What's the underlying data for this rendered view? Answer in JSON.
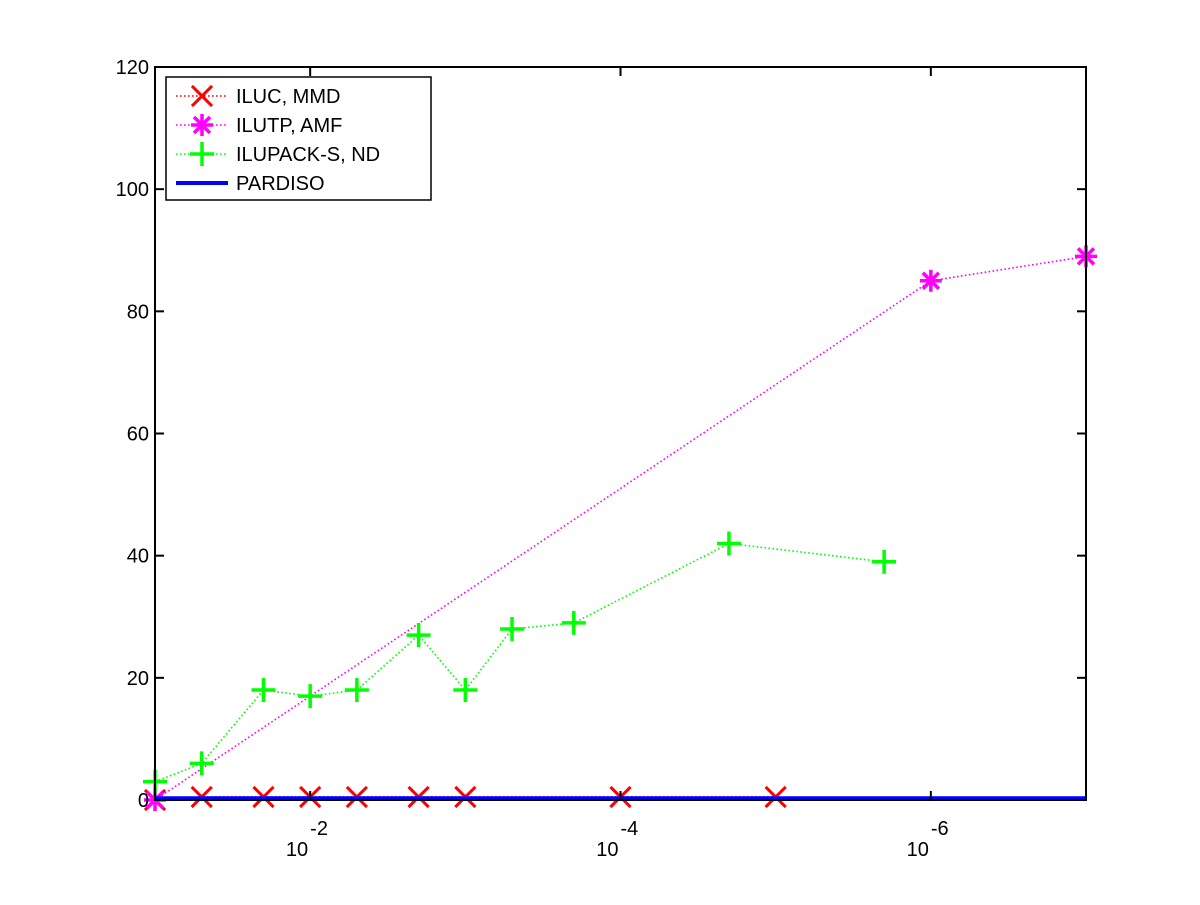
{
  "chart_data": {
    "type": "line",
    "title": "",
    "xlabel": "",
    "ylabel": "",
    "x_scale": "log",
    "x_reversed": true,
    "xlim": [
      0.1,
      1e-07
    ],
    "ylim": [
      0,
      120
    ],
    "y_ticks": [
      0,
      20,
      40,
      60,
      80,
      100,
      120
    ],
    "x_ticks": [
      {
        "value": 0.01,
        "base": "10",
        "exponent": "-2"
      },
      {
        "value": 0.0001,
        "base": "10",
        "exponent": "-4"
      },
      {
        "value": 1e-06,
        "base": "10",
        "exponent": "-6"
      }
    ],
    "grid": false,
    "legend_position": "top-left",
    "series": [
      {
        "name": "ILUC, MMD",
        "color": "#ff0000",
        "marker": "x",
        "line_style": "dotted",
        "points": [
          [
            0.1,
            0
          ],
          [
            0.05,
            0.5
          ],
          [
            0.02,
            0.5
          ],
          [
            0.01,
            0.5
          ],
          [
            0.005,
            0.5
          ],
          [
            0.002,
            0.5
          ],
          [
            0.001,
            0.5
          ],
          [
            0.0001,
            0.5
          ],
          [
            1e-05,
            0.5
          ]
        ]
      },
      {
        "name": "ILUTP, AMF",
        "color": "#ff00ff",
        "marker": "asterisk",
        "line_style": "dotted",
        "points": [
          [
            0.1,
            0
          ],
          [
            1e-06,
            85
          ],
          [
            1e-07,
            89
          ]
        ]
      },
      {
        "name": "ILUPACK-S, ND",
        "color": "#00ff00",
        "marker": "plus",
        "line_style": "dotted",
        "points": [
          [
            0.1,
            3
          ],
          [
            0.05,
            6
          ],
          [
            0.02,
            18
          ],
          [
            0.01,
            17
          ],
          [
            0.005,
            18
          ],
          [
            0.002,
            27
          ],
          [
            0.001,
            18
          ],
          [
            0.0005,
            28
          ],
          [
            0.0002,
            29
          ],
          [
            2e-05,
            42
          ],
          [
            2e-06,
            39
          ]
        ]
      },
      {
        "name": "PARDISO",
        "color": "#0000ff",
        "marker": "none",
        "line_style": "solid",
        "points": [
          [
            0.1,
            0.3
          ],
          [
            1e-07,
            0.3
          ]
        ]
      }
    ]
  }
}
